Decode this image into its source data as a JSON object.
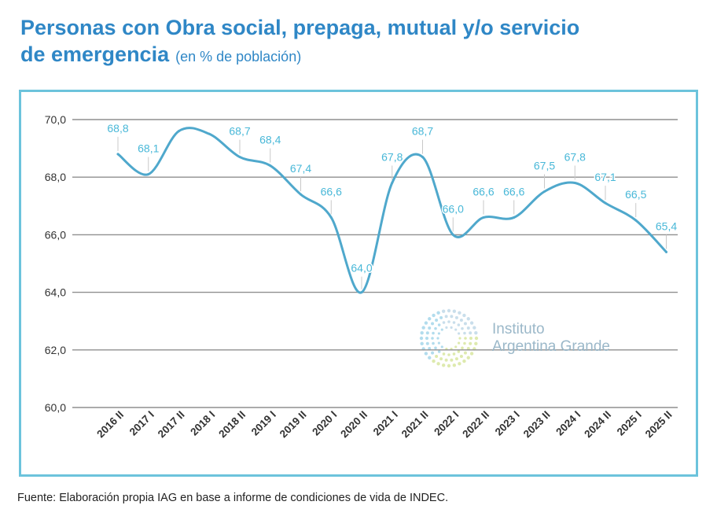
{
  "title_line1": "Personas con Obra social, prepaga, mutual y/o servicio",
  "title_line2": "de emergencia",
  "title_unit": "(en % de población)",
  "source": "Fuente: Elaboración propia IAG en base a informe de condiciones de vida de INDEC.",
  "watermark": {
    "line1": "Instituto",
    "line2": "Argentina Grande"
  },
  "colors": {
    "title": "#2f87c6",
    "line": "#4fa8cc",
    "frame": "#6cc3dc",
    "label": "#49b8d8"
  },
  "chart_data": {
    "type": "line",
    "title": "Personas con Obra social, prepaga, mutual y/o servicio de emergencia",
    "subtitle": "(en % de población)",
    "categories": [
      "2016 II",
      "2017 I",
      "2017 II",
      "2018 I",
      "2018 II",
      "2019 I",
      "2019 II",
      "2020 I",
      "2020 II",
      "2021 I",
      "2021 II",
      "2022 I",
      "2022 II",
      "2023 I",
      "2023 II",
      "2024 I",
      "2024 II",
      "2025 I",
      "2025 II"
    ],
    "series": [
      {
        "values": [
          68.8,
          68.1,
          69.6,
          69.5,
          68.7,
          68.4,
          67.4,
          66.6,
          64.0,
          67.8,
          68.7,
          66.0,
          66.6,
          66.6,
          67.5,
          67.8,
          67.1,
          66.5,
          65.4
        ]
      }
    ],
    "data_labels": [
      "68,8",
      "68,1",
      "",
      "",
      "68,7",
      "68,4",
      "67,4",
      "66,6",
      "64,0",
      "67,8",
      "68,7",
      "66,0",
      "66,6",
      "66,6",
      "67,5",
      "67,8",
      "67,1",
      "66,5",
      "65,4"
    ],
    "y_ticks": [
      60,
      62,
      64,
      66,
      68,
      70
    ],
    "y_tick_labels": [
      "60,0",
      "62,0",
      "64,0",
      "66,0",
      "68,0",
      "70,0"
    ],
    "ylim": [
      60,
      70
    ],
    "grid": true,
    "legend": "none"
  }
}
